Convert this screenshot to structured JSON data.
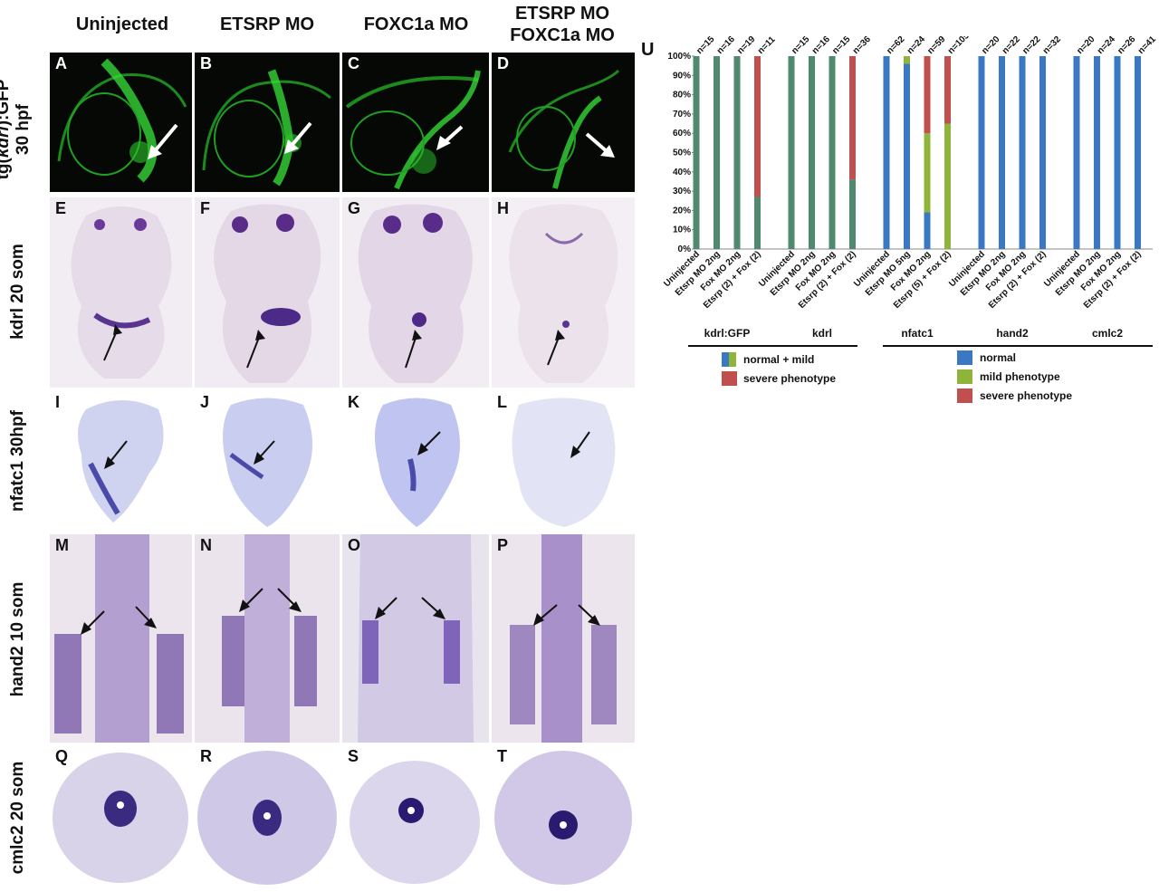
{
  "columns": [
    "Uninjected",
    "ETSRP MO",
    "FOXC1a MO",
    "ETSRP MO\nFOXC1a MO"
  ],
  "rows": [
    {
      "label_parts": [
        "tg(",
        "kdrl",
        "):GFP"
      ],
      "label_line2": "30 hpf"
    },
    {
      "label": "kdrl  20 som"
    },
    {
      "label": "nfatc1  30hpf"
    },
    {
      "label": "hand2  10 som"
    },
    {
      "label": "cmlc2  20 som"
    }
  ],
  "panel_letters": [
    "A",
    "B",
    "C",
    "D",
    "E",
    "F",
    "G",
    "H",
    "I",
    "J",
    "K",
    "L",
    "M",
    "N",
    "O",
    "P",
    "Q",
    "R",
    "S",
    "T"
  ],
  "chart_letter": "U",
  "colors": {
    "gfp": "#2fd12f",
    "ish_stain": "#4a2a8a",
    "normal": "#3b78c4",
    "mild": "#8fb43a",
    "severe": "#c0504d",
    "normal_mild": "#4f8a6e"
  },
  "chart_data": {
    "type": "bar",
    "stacked": true,
    "ylabel": "",
    "yticks": [
      "0%",
      "10%",
      "20%",
      "30%",
      "40%",
      "50%",
      "60%",
      "70%",
      "80%",
      "90%",
      "100%"
    ],
    "ylim": [
      0,
      100
    ],
    "groups": [
      {
        "name": "kdrl:GFP",
        "scheme": "two",
        "bars": [
          {
            "label": "Uninjected",
            "n": "n=15",
            "normal_mild": 100,
            "severe": 0
          },
          {
            "label": "Etsrp MO 2ng",
            "n": "n=16",
            "normal_mild": 100,
            "severe": 0
          },
          {
            "label": "Fox MO 2ng",
            "n": "n=19",
            "normal_mild": 100,
            "severe": 0
          },
          {
            "label": "Etsrp (2) + Fox (2)",
            "n": "n=11",
            "normal_mild": 27,
            "severe": 73
          }
        ]
      },
      {
        "name": "kdrl",
        "scheme": "two",
        "bars": [
          {
            "label": "Uninjected",
            "n": "n=15",
            "normal_mild": 100,
            "severe": 0
          },
          {
            "label": "Etsrp MO 2ng",
            "n": "n=16",
            "normal_mild": 100,
            "severe": 0
          },
          {
            "label": "Fox MO 2ng",
            "n": "n=15",
            "normal_mild": 100,
            "severe": 0
          },
          {
            "label": "Etsrp (2) + Fox (2)",
            "n": "n=36",
            "normal_mild": 36,
            "severe": 64
          }
        ]
      },
      {
        "name": "nfatc1",
        "scheme": "three",
        "bars": [
          {
            "label": "Uninjected",
            "n": "n=62",
            "normal": 100,
            "mild": 0,
            "severe": 0
          },
          {
            "label": "Etsrp MO 5ng",
            "n": "n=24",
            "normal": 96,
            "mild": 4,
            "severe": 0
          },
          {
            "label": "Fox MO 2ng",
            "n": "n=59",
            "normal": 19,
            "mild": 41,
            "severe": 40
          },
          {
            "label": "Etsrp (5) + Fox (2)",
            "n": "n=105",
            "normal": 0,
            "mild": 65,
            "severe": 35
          }
        ]
      },
      {
        "name": "hand2",
        "scheme": "three",
        "bars": [
          {
            "label": "Uninjected",
            "n": "n=20",
            "normal": 100,
            "mild": 0,
            "severe": 0
          },
          {
            "label": "Etsrp MO 2ng",
            "n": "n=22",
            "normal": 100,
            "mild": 0,
            "severe": 0
          },
          {
            "label": "Fox MO 2ng",
            "n": "n=22",
            "normal": 100,
            "mild": 0,
            "severe": 0
          },
          {
            "label": "Etsrp (2) + Fox (2)",
            "n": "n=32",
            "normal": 100,
            "mild": 0,
            "severe": 0
          }
        ]
      },
      {
        "name": "cmlc2",
        "scheme": "three",
        "bars": [
          {
            "label": "Uninjected",
            "n": "n=20",
            "normal": 100,
            "mild": 0,
            "severe": 0
          },
          {
            "label": "Etsrp MO 2ng",
            "n": "n=24",
            "normal": 100,
            "mild": 0,
            "severe": 0
          },
          {
            "label": "Fox MO 2ng",
            "n": "n=26",
            "normal": 100,
            "mild": 0,
            "severe": 0
          },
          {
            "label": "Etsrp (2) + Fox (2)",
            "n": "n=41",
            "normal": 100,
            "mild": 0,
            "severe": 0
          }
        ]
      }
    ],
    "legend_left": [
      {
        "key": "normal_mild",
        "label": "normal + mild"
      },
      {
        "key": "severe",
        "label": "severe phenotype"
      }
    ],
    "legend_right": [
      {
        "key": "normal",
        "label": "normal"
      },
      {
        "key": "mild",
        "label": "mild phenotype"
      },
      {
        "key": "severe",
        "label": "severe phenotype"
      }
    ]
  }
}
